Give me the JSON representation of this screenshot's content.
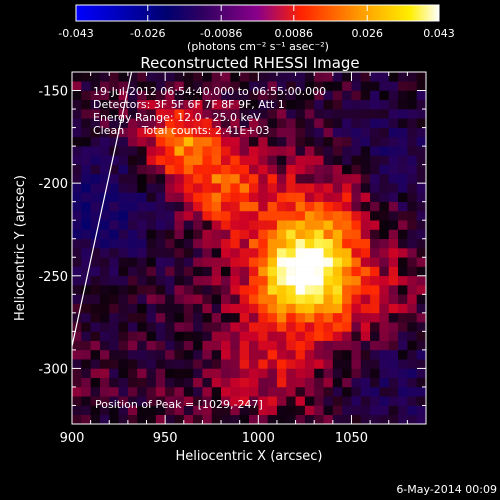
{
  "chart_data": {
    "type": "heatmap",
    "title": "Reconstructed RHESSI Image",
    "xlabel": "Heliocentric X (arcsec)",
    "ylabel": "Heliocentric Y (arcsec)",
    "xlim": [
      900,
      1090
    ],
    "ylim": [
      -330,
      -140
    ],
    "xticks": [
      900,
      950,
      1000,
      1050
    ],
    "yticks": [
      -150,
      -200,
      -250,
      -300
    ],
    "colorbar": {
      "min": -0.043,
      "max": 0.043,
      "ticks": [
        "-0.043",
        "-0.026",
        "-0.0086",
        "0.0086",
        "0.026",
        "0.043"
      ],
      "units": "(photons cm⁻² s⁻¹ asec⁻²)",
      "colormap": [
        "#0000ff",
        "#000000",
        "#8000ff",
        "#ff0000",
        "#ffff00",
        "#ffffff"
      ]
    },
    "annotations": {
      "time_range": "19-Jul-2012 06:54:40.000 to 06:55:00.000",
      "detectors": "Detectors: 3F 5F 6F 7F 8F 9F, Att 1",
      "energy": "Energy Range: 12.0 - 25.0 keV",
      "clean": "Clean     Total counts: 2.41E+03",
      "peak": "Position of Peak = [1029,-247]"
    },
    "sources": [
      {
        "x": 1022,
        "y": -246,
        "peak": 0.043,
        "sigma": 18
      },
      {
        "x": 958,
        "y": -178,
        "peak": 0.024,
        "sigma": 14
      },
      {
        "x": 985,
        "y": -203,
        "peak": 0.02,
        "sigma": 16
      },
      {
        "x": 1050,
        "y": -262,
        "peak": 0.012,
        "sigma": 22
      },
      {
        "x": 1005,
        "y": -300,
        "peak": 0.01,
        "sigma": 20
      },
      {
        "x": 1040,
        "y": -210,
        "peak": 0.013,
        "sigma": 18
      }
    ],
    "negative_regions": [
      {
        "x": 915,
        "y": -215,
        "depth": -0.014,
        "sigma": 24
      },
      {
        "x": 1070,
        "y": -185,
        "depth": -0.01,
        "sigma": 22
      },
      {
        "x": 1075,
        "y": -305,
        "depth": -0.009,
        "sigma": 22
      }
    ],
    "limb_line": {
      "x": [
        900,
        932
      ],
      "y": [
        -288,
        -140
      ]
    }
  },
  "footer": {
    "date": "6-May-2014 00:09"
  }
}
